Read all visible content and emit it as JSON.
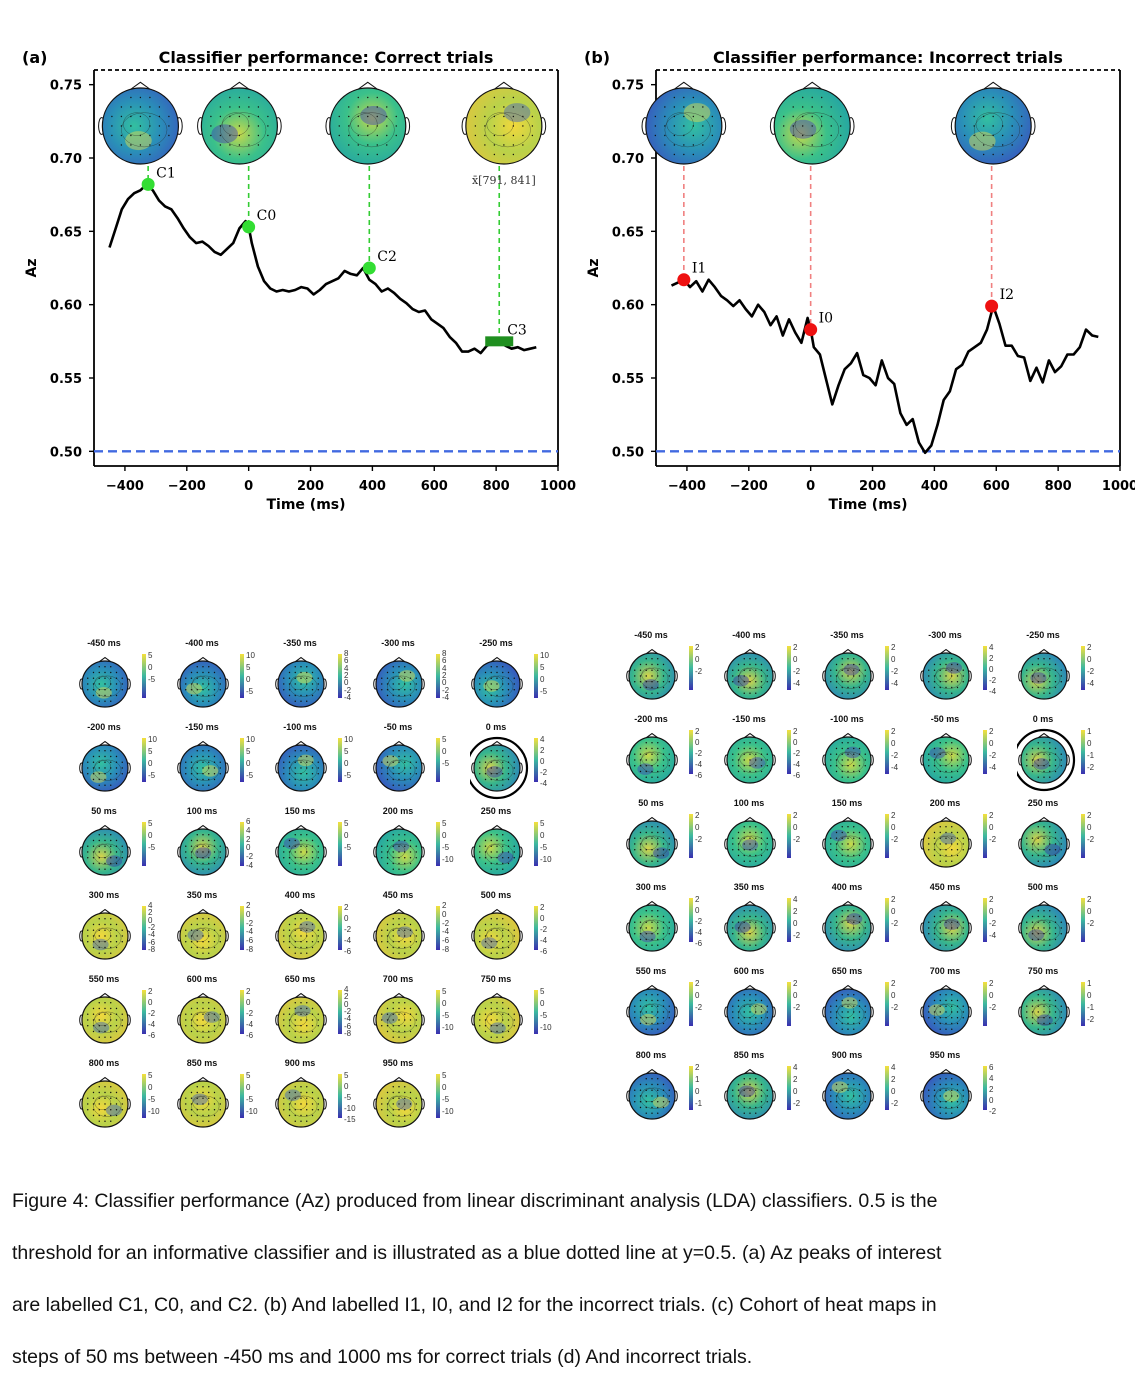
{
  "panels": {
    "a": {
      "label": "(a)",
      "title": "Classifier performance: Correct trials"
    },
    "b": {
      "label": "(b)",
      "title": "Classifier performance: Incorrect trials"
    }
  },
  "chart_data": [
    {
      "type": "line",
      "title": "Classifier performance: Correct trials",
      "xlabel": "Time (ms)",
      "ylabel": "Az",
      "xlim": [
        -500,
        1000
      ],
      "ylim": [
        0.49,
        0.76
      ],
      "xticks": [
        "−400",
        "−200",
        "0",
        "200",
        "400",
        "600",
        "800",
        "1000"
      ],
      "xtick_values": [
        -400,
        -200,
        0,
        200,
        400,
        600,
        800,
        1000
      ],
      "yticks": [
        "0.50",
        "0.55",
        "0.60",
        "0.65",
        "0.70",
        "0.75"
      ],
      "ytick_values": [
        0.5,
        0.55,
        0.6,
        0.65,
        0.7,
        0.75
      ],
      "threshold": 0.5,
      "threshold_color": "#4169e1",
      "line_color": "#000000",
      "marker_color": "#33dd33",
      "series": [
        {
          "x": [
            -450,
            -430,
            -410,
            -390,
            -370,
            -350,
            -330,
            -310,
            -290,
            -270,
            -250,
            -230,
            -210,
            -190,
            -170,
            -150,
            -130,
            -110,
            -90,
            -70,
            -50,
            -30,
            -10,
            0,
            10,
            30,
            50,
            70,
            90,
            110,
            130,
            150,
            170,
            190,
            210,
            230,
            250,
            270,
            290,
            310,
            330,
            350,
            370,
            390,
            410,
            430,
            450,
            470,
            490,
            510,
            530,
            550,
            570,
            590,
            610,
            630,
            650,
            670,
            690,
            710,
            730,
            750,
            770,
            790,
            810,
            830,
            850,
            870,
            890,
            910,
            930
          ],
          "y": [
            0.639,
            0.652,
            0.665,
            0.672,
            0.676,
            0.678,
            0.682,
            0.678,
            0.671,
            0.667,
            0.665,
            0.659,
            0.652,
            0.646,
            0.642,
            0.643,
            0.64,
            0.636,
            0.634,
            0.638,
            0.642,
            0.652,
            0.657,
            0.653,
            0.642,
            0.626,
            0.616,
            0.611,
            0.609,
            0.61,
            0.609,
            0.61,
            0.612,
            0.611,
            0.607,
            0.61,
            0.614,
            0.616,
            0.618,
            0.623,
            0.621,
            0.62,
            0.625,
            0.617,
            0.614,
            0.609,
            0.611,
            0.608,
            0.604,
            0.601,
            0.597,
            0.595,
            0.596,
            0.59,
            0.587,
            0.584,
            0.578,
            0.574,
            0.568,
            0.568,
            0.57,
            0.567,
            0.572,
            0.574,
            0.575,
            0.572,
            0.57,
            0.571,
            0.569,
            0.57,
            0.571
          ]
        }
      ],
      "markers": [
        {
          "label": "C1",
          "x": -325,
          "y": 0.682
        },
        {
          "label": "C0",
          "x": 0,
          "y": 0.653
        },
        {
          "label": "C2",
          "x": 390,
          "y": 0.625
        },
        {
          "label": "C3",
          "x": 810,
          "y": 0.575
        }
      ],
      "window_annotation": "x̄[791, 841]",
      "topomaps": [
        {
          "x": -350,
          "palette": "cool"
        },
        {
          "x": -30,
          "palette": "warm"
        },
        {
          "x": 385,
          "palette": "warm"
        },
        {
          "x": 825,
          "palette": "hot"
        }
      ]
    },
    {
      "type": "line",
      "title": "Classifier performance: Incorrect trials",
      "xlabel": "Time (ms)",
      "ylabel": "Az",
      "xlim": [
        -500,
        1000
      ],
      "ylim": [
        0.49,
        0.76
      ],
      "xticks": [
        "−400",
        "−200",
        "0",
        "200",
        "400",
        "600",
        "800",
        "1000"
      ],
      "xtick_values": [
        -400,
        -200,
        0,
        200,
        400,
        600,
        800,
        1000
      ],
      "yticks": [
        "0.50",
        "0.55",
        "0.60",
        "0.65",
        "0.70",
        "0.75"
      ],
      "ytick_values": [
        0.5,
        0.55,
        0.6,
        0.65,
        0.7,
        0.75
      ],
      "threshold": 0.5,
      "threshold_color": "#4169e1",
      "line_color": "#000000",
      "marker_color": "#ee1111",
      "series": [
        {
          "x": [
            -450,
            -430,
            -410,
            -390,
            -370,
            -350,
            -330,
            -310,
            -290,
            -270,
            -250,
            -230,
            -210,
            -190,
            -170,
            -150,
            -130,
            -110,
            -90,
            -70,
            -50,
            -30,
            -10,
            0,
            10,
            30,
            50,
            70,
            90,
            110,
            130,
            150,
            170,
            190,
            210,
            230,
            250,
            270,
            290,
            310,
            330,
            350,
            370,
            390,
            410,
            430,
            450,
            470,
            490,
            510,
            530,
            550,
            570,
            590,
            610,
            630,
            650,
            670,
            690,
            710,
            730,
            750,
            770,
            790,
            810,
            830,
            850,
            870,
            890,
            910,
            930
          ],
          "y": [
            0.613,
            0.615,
            0.617,
            0.612,
            0.616,
            0.609,
            0.617,
            0.612,
            0.606,
            0.603,
            0.599,
            0.603,
            0.597,
            0.592,
            0.6,
            0.595,
            0.586,
            0.592,
            0.579,
            0.59,
            0.581,
            0.574,
            0.591,
            0.583,
            0.571,
            0.566,
            0.549,
            0.532,
            0.545,
            0.556,
            0.56,
            0.567,
            0.552,
            0.55,
            0.545,
            0.562,
            0.55,
            0.546,
            0.526,
            0.518,
            0.522,
            0.506,
            0.499,
            0.504,
            0.518,
            0.535,
            0.541,
            0.556,
            0.559,
            0.568,
            0.571,
            0.574,
            0.583,
            0.599,
            0.587,
            0.572,
            0.572,
            0.565,
            0.564,
            0.548,
            0.557,
            0.547,
            0.562,
            0.554,
            0.558,
            0.566,
            0.566,
            0.571,
            0.583,
            0.579,
            0.578
          ]
        }
      ],
      "markers": [
        {
          "label": "I1",
          "x": -410,
          "y": 0.617
        },
        {
          "label": "I0",
          "x": 0,
          "y": 0.583
        },
        {
          "label": "I2",
          "x": 585,
          "y": 0.599
        }
      ],
      "topomaps": [
        {
          "x": -410,
          "palette": "cool"
        },
        {
          "x": 5,
          "palette": "warm"
        },
        {
          "x": 590,
          "palette": "cool"
        }
      ]
    }
  ],
  "grid_c": {
    "cells": [
      {
        "label": "-450 ms",
        "ticks": [
          "5",
          "0",
          "-5"
        ],
        "palette": "cool"
      },
      {
        "label": "-400 ms",
        "ticks": [
          "10",
          "5",
          "0",
          "-5"
        ],
        "palette": "cool"
      },
      {
        "label": "-350 ms",
        "ticks": [
          "8",
          "6",
          "4",
          "2",
          "0",
          "-2",
          "-4"
        ],
        "palette": "cool"
      },
      {
        "label": "-300 ms",
        "ticks": [
          "8",
          "6",
          "4",
          "2",
          "0",
          "-2",
          "-4"
        ],
        "palette": "cool"
      },
      {
        "label": "-250 ms",
        "ticks": [
          "10",
          "5",
          "0",
          "-5"
        ],
        "palette": "cool"
      },
      {
        "label": "-200 ms",
        "ticks": [
          "10",
          "5",
          "0",
          "-5"
        ],
        "palette": "cool"
      },
      {
        "label": "-150 ms",
        "ticks": [
          "10",
          "5",
          "0",
          "-5"
        ],
        "palette": "cool"
      },
      {
        "label": "-100 ms",
        "ticks": [
          "10",
          "5",
          "0",
          "-5"
        ],
        "palette": "cool"
      },
      {
        "label": "-50 ms",
        "ticks": [
          "5",
          "0",
          "-5"
        ],
        "palette": "cool"
      },
      {
        "label": "0 ms",
        "ticks": [
          "4",
          "2",
          "0",
          "-2",
          "-4"
        ],
        "palette": "mix",
        "circled": true
      },
      {
        "label": "50 ms",
        "ticks": [
          "5",
          "0",
          "-5"
        ],
        "palette": "mix"
      },
      {
        "label": "100 ms",
        "ticks": [
          "6",
          "4",
          "2",
          "0",
          "-2",
          "-4"
        ],
        "palette": "mix"
      },
      {
        "label": "150 ms",
        "ticks": [
          "5",
          "0",
          "-5"
        ],
        "palette": "warm"
      },
      {
        "label": "200 ms",
        "ticks": [
          "5",
          "0",
          "-5",
          "-10"
        ],
        "palette": "warm"
      },
      {
        "label": "250 ms",
        "ticks": [
          "5",
          "0",
          "-5",
          "-10"
        ],
        "palette": "warm"
      },
      {
        "label": "300 ms",
        "ticks": [
          "4",
          "2",
          "0",
          "-2",
          "-4",
          "-6",
          "-8"
        ],
        "palette": "hot"
      },
      {
        "label": "350 ms",
        "ticks": [
          "2",
          "0",
          "-2",
          "-4",
          "-6",
          "-8"
        ],
        "palette": "hot"
      },
      {
        "label": "400 ms",
        "ticks": [
          "2",
          "0",
          "-2",
          "-4",
          "-6"
        ],
        "palette": "hot"
      },
      {
        "label": "450 ms",
        "ticks": [
          "2",
          "0",
          "-2",
          "-4",
          "-6",
          "-8"
        ],
        "palette": "hot"
      },
      {
        "label": "500 ms",
        "ticks": [
          "2",
          "0",
          "-2",
          "-4",
          "-6"
        ],
        "palette": "hot"
      },
      {
        "label": "550 ms",
        "ticks": [
          "2",
          "0",
          "-2",
          "-4",
          "-6"
        ],
        "palette": "hot"
      },
      {
        "label": "600 ms",
        "ticks": [
          "2",
          "0",
          "-2",
          "-4",
          "-6"
        ],
        "palette": "hot"
      },
      {
        "label": "650 ms",
        "ticks": [
          "4",
          "2",
          "0",
          "-2",
          "-4",
          "-6",
          "-8"
        ],
        "palette": "hot"
      },
      {
        "label": "700 ms",
        "ticks": [
          "5",
          "0",
          "-5",
          "-10"
        ],
        "palette": "hot"
      },
      {
        "label": "750 ms",
        "ticks": [
          "5",
          "0",
          "-5",
          "-10"
        ],
        "palette": "hot"
      },
      {
        "label": "800 ms",
        "ticks": [
          "5",
          "0",
          "-5",
          "-10"
        ],
        "palette": "hot"
      },
      {
        "label": "850 ms",
        "ticks": [
          "5",
          "0",
          "-5",
          "-10"
        ],
        "palette": "hot"
      },
      {
        "label": "900 ms",
        "ticks": [
          "5",
          "0",
          "-5",
          "-10",
          "-15"
        ],
        "palette": "hot"
      },
      {
        "label": "950 ms",
        "ticks": [
          "5",
          "0",
          "-5",
          "-10"
        ],
        "palette": "hot"
      }
    ]
  },
  "grid_d": {
    "cells": [
      {
        "label": "-450 ms",
        "ticks": [
          "2",
          "0",
          "-2"
        ],
        "palette": "mix"
      },
      {
        "label": "-400 ms",
        "ticks": [
          "2",
          "0",
          "-2",
          "-4"
        ],
        "palette": "mix"
      },
      {
        "label": "-350 ms",
        "ticks": [
          "2",
          "0",
          "-2",
          "-4"
        ],
        "palette": "mix"
      },
      {
        "label": "-300 ms",
        "ticks": [
          "4",
          "2",
          "0",
          "-2",
          "-4"
        ],
        "palette": "mix"
      },
      {
        "label": "-250 ms",
        "ticks": [
          "2",
          "0",
          "-2",
          "-4"
        ],
        "palette": "mix"
      },
      {
        "label": "-200 ms",
        "ticks": [
          "2",
          "0",
          "-2",
          "-4",
          "-6"
        ],
        "palette": "warm"
      },
      {
        "label": "-150 ms",
        "ticks": [
          "2",
          "0",
          "-2",
          "-4",
          "-6"
        ],
        "palette": "warm"
      },
      {
        "label": "-100 ms",
        "ticks": [
          "2",
          "0",
          "-2",
          "-4"
        ],
        "palette": "warm"
      },
      {
        "label": "-50 ms",
        "ticks": [
          "2",
          "0",
          "-2",
          "-4"
        ],
        "palette": "warm"
      },
      {
        "label": "0 ms",
        "ticks": [
          "1",
          "0",
          "-1",
          "-2"
        ],
        "palette": "mix",
        "circled": true
      },
      {
        "label": "50 ms",
        "ticks": [
          "2",
          "0",
          "-2"
        ],
        "palette": "mix"
      },
      {
        "label": "100 ms",
        "ticks": [
          "2",
          "0",
          "-2"
        ],
        "palette": "warm"
      },
      {
        "label": "150 ms",
        "ticks": [
          "2",
          "0",
          "-2"
        ],
        "palette": "warm"
      },
      {
        "label": "200 ms",
        "ticks": [
          "2",
          "0",
          "-2"
        ],
        "palette": "hot"
      },
      {
        "label": "250 ms",
        "ticks": [
          "2",
          "0",
          "-2"
        ],
        "palette": "mix"
      },
      {
        "label": "300 ms",
        "ticks": [
          "2",
          "0",
          "-2",
          "-4",
          "-6"
        ],
        "palette": "warm"
      },
      {
        "label": "350 ms",
        "ticks": [
          "4",
          "2",
          "0",
          "-2"
        ],
        "palette": "mix"
      },
      {
        "label": "400 ms",
        "ticks": [
          "2",
          "0",
          "-2"
        ],
        "palette": "mix"
      },
      {
        "label": "450 ms",
        "ticks": [
          "2",
          "0",
          "-2",
          "-4"
        ],
        "palette": "mix"
      },
      {
        "label": "500 ms",
        "ticks": [
          "2",
          "0",
          "-2"
        ],
        "palette": "mix"
      },
      {
        "label": "550 ms",
        "ticks": [
          "2",
          "0",
          "-2"
        ],
        "palette": "cool"
      },
      {
        "label": "600 ms",
        "ticks": [
          "2",
          "0",
          "-2"
        ],
        "palette": "cool"
      },
      {
        "label": "650 ms",
        "ticks": [
          "2",
          "0",
          "-2"
        ],
        "palette": "cool"
      },
      {
        "label": "700 ms",
        "ticks": [
          "2",
          "0",
          "-2"
        ],
        "palette": "cool"
      },
      {
        "label": "750 ms",
        "ticks": [
          "1",
          "0",
          "-1",
          "-2"
        ],
        "palette": "mix"
      },
      {
        "label": "800 ms",
        "ticks": [
          "2",
          "1",
          "0",
          "-1"
        ],
        "palette": "cool"
      },
      {
        "label": "850 ms",
        "ticks": [
          "4",
          "2",
          "0",
          "-2"
        ],
        "palette": "mix"
      },
      {
        "label": "900 ms",
        "ticks": [
          "4",
          "2",
          "0",
          "-2"
        ],
        "palette": "cool"
      },
      {
        "label": "950 ms",
        "ticks": [
          "6",
          "4",
          "2",
          "0",
          "-2"
        ],
        "palette": "cool"
      }
    ]
  },
  "caption": {
    "line1": "Figure 4: Classifier performance (Az) produced from linear discriminant analysis (LDA) classifiers. 0.5 is the",
    "line2": "threshold for an informative classifier and is illustrated as a blue dotted line at y=0.5. (a) Az peaks of interest",
    "line3": "are labelled C1, C0, and C2. (b) And labelled I1, I0, and I2 for the incorrect trials. (c) Cohort of heat maps in",
    "line4": "steps of 50 ms between -450 ms and 1000 ms for correct trials (d) And incorrect trials."
  }
}
